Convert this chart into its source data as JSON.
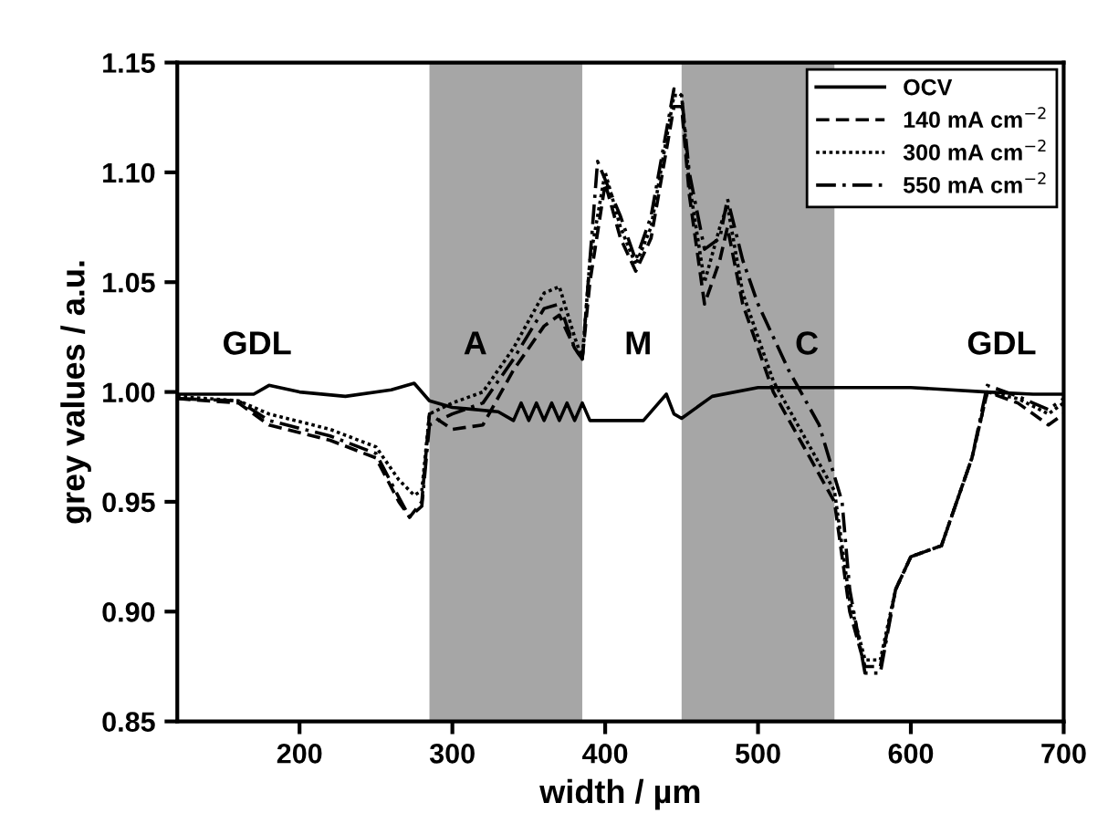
{
  "chart_data": {
    "type": "line",
    "xlabel": "width / µm",
    "ylabel": "grey values / a.u.",
    "xlim": [
      120,
      700
    ],
    "xticks": [
      200,
      300,
      400,
      500,
      600,
      700
    ],
    "ylim": [
      0.85,
      1.15
    ],
    "yticks": [
      {
        "value": 0.85,
        "label": "0.85"
      },
      {
        "value": 0.9,
        "label": "0.90"
      },
      {
        "value": 0.95,
        "label": "0.95"
      },
      {
        "value": 1.0,
        "label": "1.00"
      },
      {
        "value": 1.05,
        "label": "1.05"
      },
      {
        "value": 1.1,
        "label": "1.10"
      },
      {
        "value": 1.15,
        "label": "1.15"
      }
    ],
    "grid": false,
    "legend": "top right",
    "marker": "none",
    "bands": [
      {
        "axis": "x",
        "from": 285,
        "to": 385,
        "label": "A",
        "color": "#a6a6a6"
      },
      {
        "axis": "x",
        "from": 450,
        "to": 550,
        "label": "C",
        "color": "#a6a6a6"
      }
    ],
    "annotations": [
      "GDL",
      "M",
      "GDL"
    ],
    "series": [
      {
        "name": "OCV",
        "color": "#000000",
        "line_style": "solid",
        "x": [
          120,
          150,
          170,
          180,
          200,
          230,
          260,
          275,
          285,
          300,
          330,
          340,
          345,
          350,
          355,
          360,
          365,
          370,
          375,
          380,
          385,
          390,
          400,
          425,
          435,
          440,
          445,
          450,
          470,
          500,
          550,
          600,
          650,
          680,
          700
        ],
        "values": [
          0.999,
          0.999,
          0.999,
          1.003,
          1.0,
          0.998,
          1.001,
          1.004,
          0.996,
          0.993,
          0.991,
          0.987,
          0.995,
          0.987,
          0.995,
          0.987,
          0.995,
          0.987,
          0.995,
          0.987,
          0.995,
          0.987,
          0.987,
          0.987,
          0.995,
          0.999,
          0.99,
          0.988,
          0.998,
          1.002,
          1.002,
          1.002,
          1.0,
          0.999,
          0.999
        ]
      },
      {
        "name": "140 mA cm$^{−2}$",
        "color": "#000000",
        "line_style": "dashed",
        "x": [
          120,
          160,
          180,
          220,
          250,
          265,
          272,
          280,
          285,
          300,
          320,
          340,
          360,
          370,
          380,
          385,
          390,
          400,
          410,
          420,
          430,
          445,
          450,
          455,
          465,
          475,
          480,
          490,
          510,
          530,
          550,
          560,
          570,
          580,
          590,
          600,
          620,
          640,
          650,
          670,
          690,
          700
        ],
        "values": [
          0.997,
          0.995,
          0.985,
          0.978,
          0.97,
          0.95,
          0.943,
          0.95,
          0.99,
          0.983,
          0.985,
          1.01,
          1.03,
          1.035,
          1.02,
          1.015,
          1.05,
          1.095,
          1.07,
          1.055,
          1.07,
          1.13,
          1.13,
          1.09,
          1.04,
          1.06,
          1.075,
          1.04,
          1.0,
          0.975,
          0.95,
          0.9,
          0.875,
          0.875,
          0.91,
          0.925,
          0.93,
          0.97,
          1.0,
          0.995,
          0.985,
          0.99
        ]
      },
      {
        "name": "300 mA cm$^{−2}$",
        "color": "#000000",
        "line_style": "dotted",
        "x": [
          120,
          160,
          180,
          220,
          250,
          265,
          275,
          280,
          285,
          300,
          320,
          340,
          360,
          370,
          380,
          385,
          390,
          400,
          410,
          420,
          430,
          445,
          450,
          455,
          465,
          475,
          480,
          490,
          510,
          530,
          550,
          560,
          570,
          580,
          590,
          600,
          620,
          640,
          650,
          670,
          690,
          700
        ],
        "values": [
          0.998,
          0.996,
          0.99,
          0.983,
          0.975,
          0.96,
          0.953,
          0.955,
          0.99,
          0.995,
          1.0,
          1.02,
          1.045,
          1.048,
          1.025,
          1.015,
          1.06,
          1.1,
          1.075,
          1.058,
          1.075,
          1.135,
          1.135,
          1.095,
          1.05,
          1.075,
          1.085,
          1.045,
          1.005,
          0.98,
          0.955,
          0.905,
          0.878,
          0.878,
          0.91,
          0.925,
          0.93,
          0.97,
          1.0,
          0.997,
          0.99,
          0.995
        ]
      },
      {
        "name": "550 mA cm$^{−2}$",
        "color": "#000000",
        "line_style": "dashdot",
        "x": [
          120,
          160,
          180,
          220,
          250,
          265,
          272,
          280,
          285,
          300,
          320,
          340,
          360,
          370,
          380,
          385,
          390,
          395,
          410,
          420,
          430,
          445,
          450,
          455,
          465,
          475,
          480,
          490,
          500,
          520,
          540,
          555,
          560,
          570,
          580,
          590,
          600,
          620,
          640,
          650,
          670,
          690,
          700
        ],
        "values": [
          0.997,
          0.996,
          0.987,
          0.98,
          0.972,
          0.952,
          0.943,
          0.948,
          0.985,
          0.99,
          0.995,
          1.015,
          1.038,
          1.04,
          1.02,
          1.015,
          1.06,
          1.105,
          1.08,
          1.06,
          1.08,
          1.138,
          1.135,
          1.1,
          1.065,
          1.07,
          1.088,
          1.06,
          1.04,
          1.01,
          0.985,
          0.95,
          0.91,
          0.872,
          0.872,
          0.91,
          0.925,
          0.93,
          0.97,
          1.003,
          0.998,
          0.992,
          0.997
        ]
      }
    ]
  }
}
